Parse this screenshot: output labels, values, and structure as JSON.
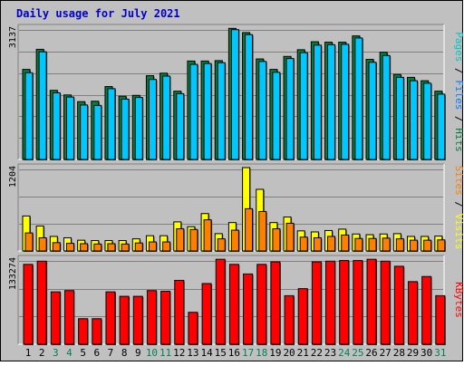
{
  "chart_data": [
    {
      "type": "bar",
      "title": "Daily usage for July 2021",
      "ylabel_parts": [
        {
          "text": "Pages",
          "color": "#00c8c8"
        },
        {
          "text": " / ",
          "color": "#000000"
        },
        {
          "text": "Files",
          "color": "#0080ff"
        },
        {
          "text": " / ",
          "color": "#000000"
        },
        {
          "text": "Hits",
          "color": "#008040"
        }
      ],
      "ymax_label": "3137",
      "ylim": [
        0,
        3137
      ],
      "categories": [
        "1",
        "2",
        "3",
        "4",
        "5",
        "6",
        "7",
        "8",
        "9",
        "10",
        "11",
        "12",
        "13",
        "14",
        "15",
        "16",
        "17",
        "18",
        "19",
        "20",
        "21",
        "22",
        "23",
        "24",
        "25",
        "26",
        "27",
        "28",
        "29",
        "30",
        "31"
      ],
      "weekend_days": [
        "3",
        "4",
        "10",
        "11",
        "17",
        "18",
        "24",
        "25",
        "31"
      ],
      "series": [
        {
          "name": "Hits",
          "color": "#008040",
          "values": [
            2150,
            2630,
            1650,
            1540,
            1380,
            1390,
            1740,
            1510,
            1530,
            2000,
            2060,
            1630,
            2350,
            2350,
            2360,
            3130,
            3030,
            2400,
            2150,
            2460,
            2620,
            2810,
            2800,
            2800,
            2950,
            2390,
            2560,
            2030,
            1960,
            1880,
            1630
          ]
        },
        {
          "name": "Files",
          "color": "#0080ff",
          "values": [
            2070,
            2570,
            1590,
            1490,
            1300,
            1290,
            1690,
            1440,
            1480,
            1910,
            1990,
            1570,
            2270,
            2290,
            2310,
            3100,
            2980,
            2340,
            2080,
            2410,
            2550,
            2730,
            2740,
            2750,
            2900,
            2320,
            2480,
            1960,
            1880,
            1820,
            1560
          ]
        }
      ]
    },
    {
      "type": "bar",
      "ylabel_parts": [
        {
          "text": "Sites",
          "color": "#ff8000"
        },
        {
          "text": " / ",
          "color": "#000000"
        },
        {
          "text": "Visits",
          "color": "#ffff00"
        }
      ],
      "ymax_label": "1204",
      "ylim": [
        0,
        1204
      ],
      "categories": [
        "1",
        "2",
        "3",
        "4",
        "5",
        "6",
        "7",
        "8",
        "9",
        "10",
        "11",
        "12",
        "13",
        "14",
        "15",
        "16",
        "17",
        "18",
        "19",
        "20",
        "21",
        "22",
        "23",
        "24",
        "25",
        "26",
        "27",
        "28",
        "29",
        "30",
        "31"
      ],
      "series": [
        {
          "name": "Visits",
          "color": "#ffff00",
          "values": [
            505,
            360,
            210,
            190,
            155,
            150,
            150,
            150,
            175,
            220,
            220,
            420,
            350,
            540,
            250,
            410,
            1204,
            890,
            410,
            490,
            290,
            275,
            295,
            315,
            245,
            235,
            245,
            250,
            210,
            210,
            215
          ]
        },
        {
          "name": "Sites",
          "color": "#ff8000",
          "values": [
            260,
            190,
            120,
            110,
            105,
            100,
            105,
            100,
            115,
            130,
            130,
            320,
            310,
            450,
            175,
            300,
            610,
            570,
            320,
            400,
            200,
            190,
            210,
            230,
            180,
            180,
            185,
            175,
            155,
            155,
            160
          ]
        }
      ]
    },
    {
      "type": "bar",
      "ylabel_parts": [
        {
          "text": "KBytes",
          "color": "#ff0000"
        }
      ],
      "ymax_label": "133274",
      "ylim": [
        0,
        133274
      ],
      "categories": [
        "1",
        "2",
        "3",
        "4",
        "5",
        "6",
        "7",
        "8",
        "9",
        "10",
        "11",
        "12",
        "13",
        "14",
        "15",
        "16",
        "17",
        "18",
        "19",
        "20",
        "21",
        "22",
        "23",
        "24",
        "25",
        "26",
        "27",
        "28",
        "29",
        "30",
        "31"
      ],
      "series": [
        {
          "name": "KBytes",
          "color": "#ff0000",
          "values": [
            125000,
            130000,
            82000,
            84000,
            40000,
            40000,
            82000,
            75000,
            75000,
            84000,
            83000,
            100000,
            50000,
            95000,
            133000,
            125000,
            110000,
            125000,
            129000,
            76000,
            87000,
            129000,
            130000,
            131000,
            131000,
            133000,
            130000,
            122000,
            98000,
            106000,
            76000
          ]
        }
      ]
    }
  ]
}
